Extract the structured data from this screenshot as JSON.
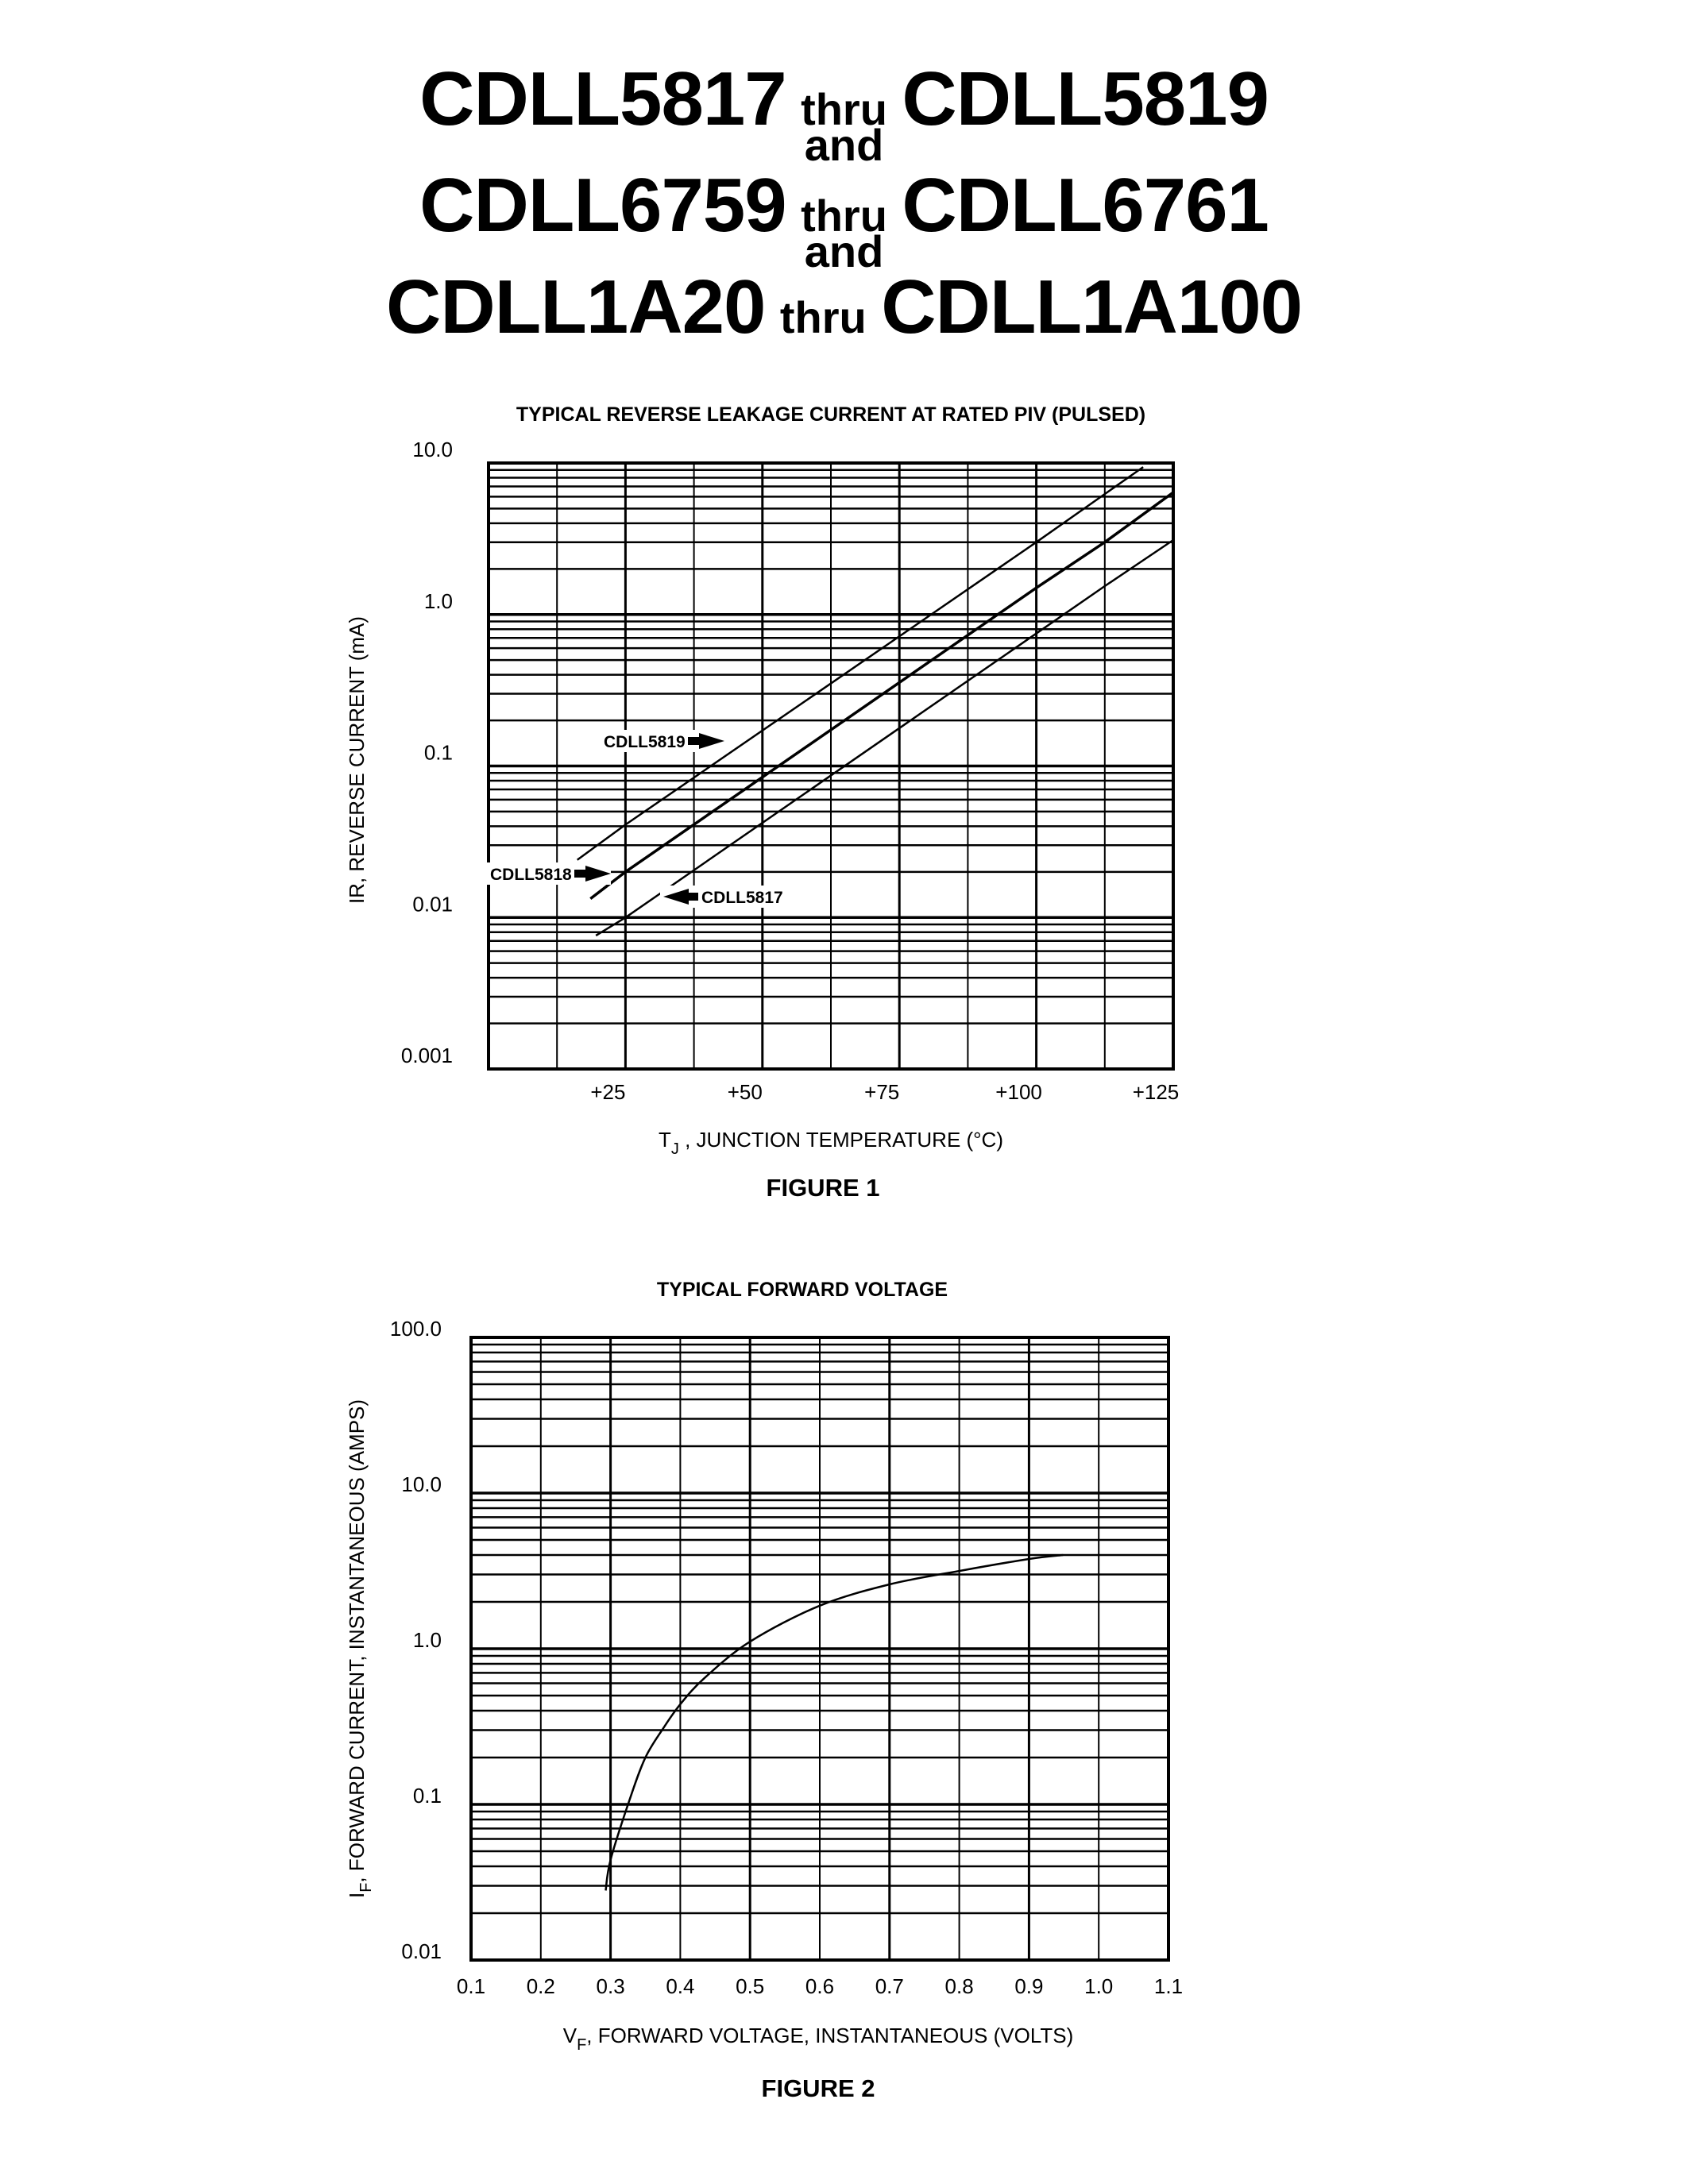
{
  "header": {
    "lines": [
      {
        "left": "CDLL5817",
        "mid": "thru",
        "right": "CDLL5819"
      },
      {
        "left": "CDLL6759",
        "mid": "thru",
        "right": "CDLL6761"
      },
      {
        "left": "CDLL1A20",
        "mid": "thru",
        "right": "CDLL1A100"
      }
    ],
    "connector": "and"
  },
  "chart_data": [
    {
      "type": "line",
      "figure_label": "FIGURE 1",
      "title": "TYPICAL REVERSE LEAKAGE CURRENT AT RATED PIV (PULSED)",
      "xlabel": "T",
      "xlabel_sub": "J",
      "xlabel_rest": " , JUNCTION TEMPERATURE (°C)",
      "ylabel": "IR, REVERSE CURRENT (mA)",
      "yscale": "log",
      "xlim": [
        0,
        125
      ],
      "ylim": [
        0.001,
        10.0
      ],
      "x_tick_labels": [
        {
          "value": 25,
          "label": "+25"
        },
        {
          "value": 50,
          "label": "+50"
        },
        {
          "value": 75,
          "label": "+75"
        },
        {
          "value": 100,
          "label": "+100"
        },
        {
          "value": 125,
          "label": "+125"
        }
      ],
      "y_tick_labels": [
        {
          "value": 10.0,
          "label": "10.0"
        },
        {
          "value": 1.0,
          "label": "1.0"
        },
        {
          "value": 0.1,
          "label": "0.1"
        },
        {
          "value": 0.01,
          "label": "0.01"
        },
        {
          "value": 0.001,
          "label": "0.001"
        }
      ],
      "grid": true,
      "x_grid_step": 12.5,
      "series": [
        {
          "name": "CDLL5819",
          "x": [
            16.2,
            25,
            100,
            119.5
          ],
          "y": [
            0.024,
            0.041,
            3.0,
            9.4
          ],
          "label_pos": {
            "x": 760,
            "y": 933
          },
          "arrow": "right"
        },
        {
          "name": "CDLL5818",
          "x": [
            18.6,
            25,
            100,
            112.5,
            125
          ],
          "y": [
            0.0133,
            0.02,
            1.5,
            3.0,
            6.4
          ],
          "label_pos": {
            "x": 617,
            "y": 1100
          },
          "arrow": "right",
          "stroke_width": 3.5
        },
        {
          "name": "CDLL5817",
          "x": [
            19.6,
            25,
            112.5,
            125
          ],
          "y": [
            0.0076,
            0.01,
            1.54,
            3.1
          ],
          "label_pos": {
            "x": 835,
            "y": 1129
          },
          "arrow": "left"
        }
      ]
    },
    {
      "type": "line",
      "figure_label": "FIGURE 2",
      "title": "TYPICAL FORWARD VOLTAGE",
      "xlabel": "V",
      "xlabel_sub": "F",
      "xlabel_rest": ", FORWARD VOLTAGE, INSTANTANEOUS (VOLTS)",
      "ylabel": "I",
      "ylabel_sub": "F",
      "ylabel_rest": ", FORWARD CURRENT, INSTANTANEOUS (AMPS)",
      "yscale": "log",
      "xlim": [
        0.1,
        1.1
      ],
      "ylim": [
        0.01,
        100.0
      ],
      "x_tick_labels": [
        {
          "value": 0.1,
          "label": "0.1"
        },
        {
          "value": 0.2,
          "label": "0.2"
        },
        {
          "value": 0.3,
          "label": "0.3"
        },
        {
          "value": 0.4,
          "label": "0.4"
        },
        {
          "value": 0.5,
          "label": "0.5"
        },
        {
          "value": 0.6,
          "label": "0.6"
        },
        {
          "value": 0.7,
          "label": "0.7"
        },
        {
          "value": 0.8,
          "label": "0.8"
        },
        {
          "value": 0.9,
          "label": "0.9"
        },
        {
          "value": 1.0,
          "label": "1.0"
        },
        {
          "value": 1.1,
          "label": "1.1"
        }
      ],
      "y_tick_labels": [
        {
          "value": 100.0,
          "label": "100.0"
        },
        {
          "value": 10.0,
          "label": "10.0"
        },
        {
          "value": 1.0,
          "label": "1.0"
        },
        {
          "value": 0.1,
          "label": "0.1"
        },
        {
          "value": 0.01,
          "label": "0.01"
        }
      ],
      "grid": true,
      "x_grid_step": 0.1,
      "series": [
        {
          "name": "Typical forward voltage",
          "x": [
            0.293,
            0.3,
            0.327,
            0.35,
            0.376,
            0.4,
            0.435,
            0.5,
            0.6,
            0.7,
            0.8,
            0.9,
            0.949
          ],
          "y": [
            0.028,
            0.044,
            0.106,
            0.2,
            0.31,
            0.44,
            0.65,
            1.11,
            1.89,
            2.59,
            3.16,
            3.77,
            4.0
          ]
        }
      ]
    }
  ]
}
